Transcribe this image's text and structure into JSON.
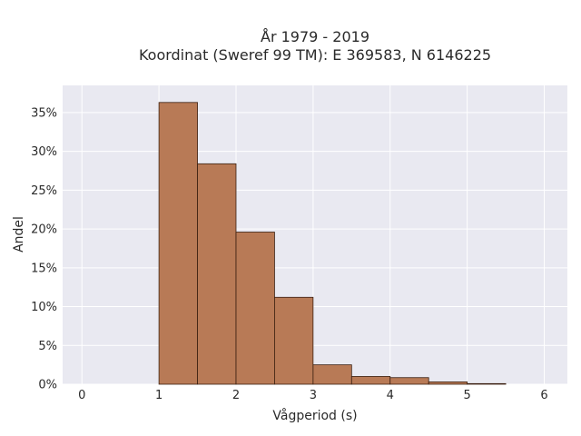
{
  "chart_data": {
    "type": "bar",
    "title_lines": [
      "År 1979 - 2019",
      "Koordinat (Sweref 99 TM): E 369583, N 6146225"
    ],
    "xlabel": "Vågperiod (s)",
    "ylabel": "Andel",
    "xlim": [
      -0.25,
      6.3
    ],
    "ylim": [
      0,
      38.5
    ],
    "x_ticks": [
      0,
      1,
      2,
      3,
      4,
      5,
      6
    ],
    "x_tick_labels": [
      "0",
      "1",
      "2",
      "3",
      "4",
      "5",
      "6"
    ],
    "y_ticks": [
      0,
      5,
      10,
      15,
      20,
      25,
      30,
      35
    ],
    "y_tick_labels": [
      "0%",
      "5%",
      "10%",
      "15%",
      "20%",
      "25%",
      "30%",
      "35%"
    ],
    "bin_width": 0.5,
    "bins": [
      {
        "x0": 1.0,
        "value": 36.3
      },
      {
        "x0": 1.5,
        "value": 28.4
      },
      {
        "x0": 2.0,
        "value": 19.6
      },
      {
        "x0": 2.5,
        "value": 11.2
      },
      {
        "x0": 3.0,
        "value": 2.5
      },
      {
        "x0": 3.5,
        "value": 1.0
      },
      {
        "x0": 4.0,
        "value": 0.85
      },
      {
        "x0": 4.5,
        "value": 0.3
      },
      {
        "x0": 5.0,
        "value": 0.08
      }
    ],
    "grid": true,
    "bar_color": "#b87a56",
    "bar_edge_color": "#3a1f10",
    "plot_background": "#e9e9f1",
    "grid_color": "#ffffff"
  }
}
